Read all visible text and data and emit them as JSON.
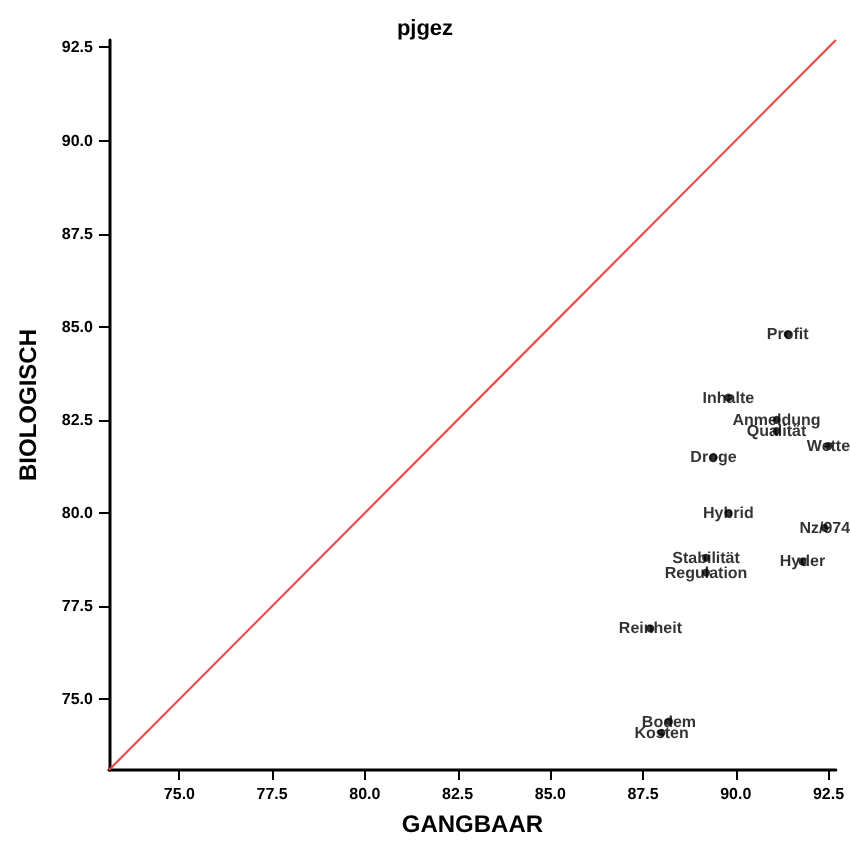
{
  "chart_data": {
    "type": "scatter",
    "title": "pjgez",
    "xlabel": "GANGBAAR",
    "ylabel": "BIOLOGISCH",
    "xlim": [
      73.1,
      92.7
    ],
    "ylim": [
      73.1,
      92.7
    ],
    "xticks": [
      {
        "value": 75,
        "label": "75.0"
      },
      {
        "value": 77.5,
        "label": "77.5"
      },
      {
        "value": 80,
        "label": "80.0"
      },
      {
        "value": 82.5,
        "label": "82.5"
      },
      {
        "value": 85,
        "label": "85.0"
      },
      {
        "value": 87.5,
        "label": "87.5"
      },
      {
        "value": 90,
        "label": "90.0"
      },
      {
        "value": 92.5,
        "label": "92.5"
      }
    ],
    "yticks": [
      {
        "value": 75,
        "label": "75.0"
      },
      {
        "value": 77.5,
        "label": "77.5"
      },
      {
        "value": 80,
        "label": "80.0"
      },
      {
        "value": 82.5,
        "label": "82.5"
      },
      {
        "value": 85,
        "label": "85.0"
      },
      {
        "value": 87.5,
        "label": "87.5"
      },
      {
        "value": 90,
        "label": "90.0"
      },
      {
        "value": 92.5,
        "label": "92.5"
      }
    ],
    "grid": false,
    "annotations": [
      {
        "text": "Profit",
        "x": 91.4,
        "y": 84.8
      },
      {
        "text": "Inhalte",
        "x": 89.8,
        "y": 83.1
      },
      {
        "text": "Anmeldung",
        "x": 91.1,
        "y": 82.5
      },
      {
        "text": "Qualität",
        "x": 91.1,
        "y": 82.2
      },
      {
        "text": "Wette",
        "x": 92.5,
        "y": 81.8
      },
      {
        "text": "Droge",
        "x": 89.4,
        "y": 81.5
      },
      {
        "text": "Hybrid",
        "x": 89.8,
        "y": 80.0
      },
      {
        "text": "Nz/974",
        "x": 92.4,
        "y": 79.6
      },
      {
        "text": "Hyder",
        "x": 91.8,
        "y": 78.7
      },
      {
        "text": "Stabilität",
        "x": 89.2,
        "y": 78.8
      },
      {
        "text": "Regulation",
        "x": 89.2,
        "y": 78.4
      },
      {
        "text": "Reinheit",
        "x": 87.7,
        "y": 76.9
      },
      {
        "text": "Bodem",
        "x": 88.2,
        "y": 74.4
      },
      {
        "text": "Kosten",
        "x": 88.0,
        "y": 74.1
      }
    ],
    "series": [
      {
        "type": "scatter",
        "marker": "circle",
        "color": "#000000",
        "x": [
          91.4,
          89.8,
          91.1,
          91.1,
          92.5,
          89.4,
          89.8,
          92.4,
          91.8,
          89.2,
          89.2,
          87.7,
          88.2,
          88.0
        ],
        "values": [
          84.8,
          83.1,
          82.5,
          82.2,
          81.8,
          81.5,
          80.0,
          79.6,
          78.7,
          78.8,
          78.4,
          76.9,
          74.4,
          74.1
        ]
      },
      {
        "type": "line",
        "color": "#ff3b3b",
        "x": [
          73.1,
          92.7
        ],
        "values": [
          73.1,
          92.7
        ],
        "line_style": "solid"
      }
    ]
  }
}
